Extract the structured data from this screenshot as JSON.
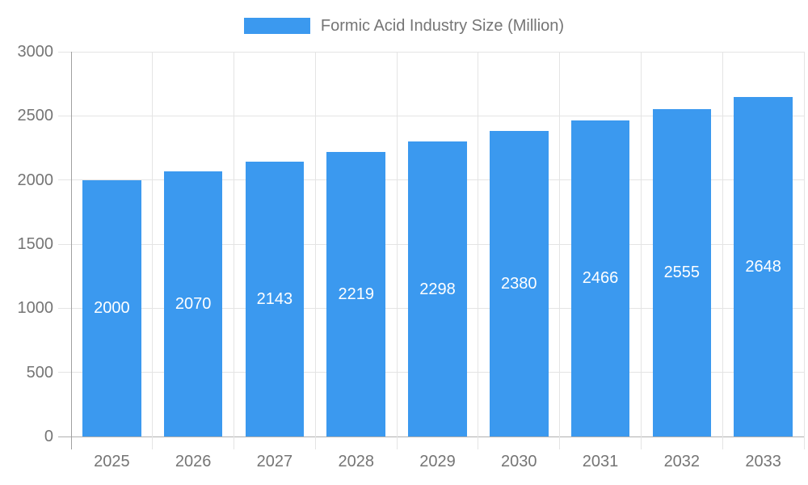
{
  "legend": {
    "label": "Formic Acid Industry Size (Million)"
  },
  "chart_data": {
    "type": "bar",
    "title": "Formic Acid Industry Size (Million)",
    "categories": [
      "2025",
      "2026",
      "2027",
      "2028",
      "2029",
      "2030",
      "2031",
      "2032",
      "2033"
    ],
    "series": [
      {
        "name": "Formic Acid Industry Size (Million)",
        "values": [
          2000,
          2070,
          2143,
          2219,
          2298,
          2380,
          2466,
          2555,
          2648
        ]
      }
    ],
    "xlabel": "",
    "ylabel": "",
    "ylim": [
      0,
      3000
    ],
    "yticks": [
      0,
      500,
      1000,
      1500,
      2000,
      2500,
      3000
    ],
    "grid": true,
    "legend_position": "top",
    "value_labels": "inside-center-white"
  },
  "colors": {
    "bar": "#3b99ef",
    "text": "#757575",
    "bar_label": "#ffffff",
    "gridline": "#e4e4e4",
    "x_axis_line": "#b0b0b0",
    "y_axis_line": "#a0a0a0"
  }
}
